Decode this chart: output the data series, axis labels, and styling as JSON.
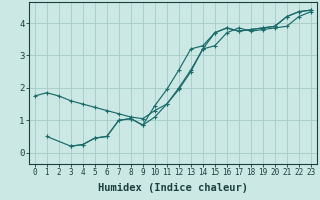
{
  "xlabel": "Humidex (Indice chaleur)",
  "xlim": [
    -0.5,
    23.5
  ],
  "ylim": [
    -0.35,
    4.65
  ],
  "bg_color": "#cce8e4",
  "grid_color": "#aacfcb",
  "line_color": "#1a6b6b",
  "series": [
    {
      "x": [
        0,
        1,
        2,
        3,
        4,
        5,
        6,
        7,
        8,
        9,
        10,
        11,
        12,
        13,
        14,
        15,
        16,
        17,
        18,
        19,
        20,
        21,
        22,
        23
      ],
      "y": [
        1.75,
        1.85,
        1.75,
        1.6,
        1.5,
        1.4,
        1.3,
        1.2,
        1.1,
        1.05,
        1.3,
        1.5,
        2.0,
        2.55,
        3.2,
        3.3,
        3.7,
        3.85,
        3.75,
        3.8,
        3.85,
        3.9,
        4.2,
        4.35
      ]
    },
    {
      "x": [
        1,
        3,
        4,
        5,
        6,
        7,
        8,
        9,
        10,
        11,
        12,
        13,
        14,
        15,
        16,
        17,
        18,
        19,
        20,
        21,
        22,
        23
      ],
      "y": [
        0.5,
        0.2,
        0.25,
        0.45,
        0.5,
        1.0,
        1.05,
        0.85,
        1.45,
        1.95,
        2.55,
        3.2,
        3.3,
        3.7,
        3.85,
        3.75,
        3.8,
        3.85,
        3.9,
        4.2,
        4.35,
        4.4
      ]
    },
    {
      "x": [
        3,
        4,
        5,
        6,
        7,
        8,
        9,
        10,
        11,
        12,
        13,
        14,
        15,
        16,
        17,
        18,
        19,
        20,
        21,
        22,
        23
      ],
      "y": [
        0.2,
        0.25,
        0.45,
        0.5,
        1.0,
        1.05,
        0.85,
        1.1,
        1.5,
        1.95,
        2.5,
        3.2,
        3.7,
        3.85,
        3.75,
        3.8,
        3.85,
        3.9,
        4.2,
        4.35,
        4.4
      ]
    }
  ],
  "xtick_labels": [
    "0",
    "1",
    "2",
    "3",
    "4",
    "5",
    "6",
    "7",
    "8",
    "9",
    "10",
    "11",
    "12",
    "13",
    "14",
    "15",
    "16",
    "17",
    "18",
    "19",
    "20",
    "21",
    "22",
    "23"
  ],
  "ytick_labels": [
    "0",
    "1",
    "2",
    "3",
    "4"
  ],
  "ytick_vals": [
    0,
    1,
    2,
    3,
    4
  ],
  "tick_fontsize": 5.5,
  "xlabel_fontsize": 7.5
}
